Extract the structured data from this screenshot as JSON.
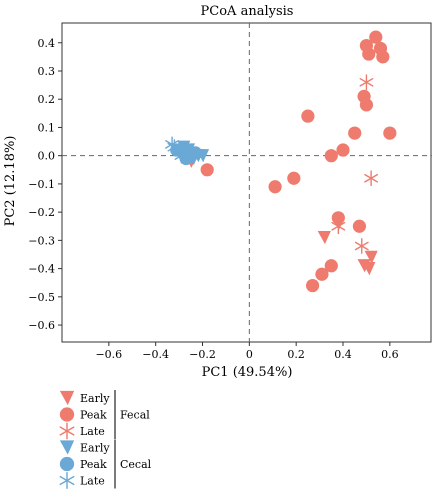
{
  "chart_data": {
    "type": "scatter",
    "title": "PCoA analysis",
    "xlabel": "PC1 (49.54%)",
    "ylabel": "PC2 (12.18%)",
    "xlim": [
      -0.8,
      0.78
    ],
    "ylim": [
      -0.66,
      0.47
    ],
    "xticks": [
      -0.6,
      -0.4,
      -0.2,
      0,
      0.2,
      0.4,
      0.6
    ],
    "yticks": [
      0.4,
      0.3,
      0.2,
      0.1,
      0.0,
      -0.1,
      -0.2,
      -0.3,
      -0.4,
      -0.5,
      -0.6
    ],
    "xtick_labels": [
      "−0.6",
      "−0.4",
      "−0.2",
      "0",
      "0.2",
      "0.4",
      "0.6"
    ],
    "ytick_labels": [
      "0.4",
      "0.3",
      "0.2",
      "0.1",
      "0.0",
      "−0.1",
      "−0.2",
      "−0.3",
      "−0.4",
      "−0.5",
      "−0.6"
    ],
    "grid": false,
    "reference_lines": {
      "x": 0,
      "y": 0,
      "style": "dashed"
    },
    "legend_position": "bottom-left",
    "legend_groups": [
      {
        "label": "Fecal",
        "entries": [
          "Early",
          "Peak",
          "Late"
        ]
      },
      {
        "label": "Cecal",
        "entries": [
          "Early",
          "Peak",
          "Late"
        ]
      }
    ],
    "colors": {
      "Fecal": "#ee7b6e",
      "Cecal": "#6aa8d6"
    },
    "series": [
      {
        "name": "Early",
        "group": "Fecal",
        "marker": "triangle",
        "points": [
          [
            -0.25,
            -0.02
          ],
          [
            0.32,
            -0.29
          ],
          [
            0.38,
            -0.24
          ],
          [
            0.49,
            -0.39
          ],
          [
            0.51,
            -0.4
          ],
          [
            0.52,
            -0.36
          ]
        ]
      },
      {
        "name": "Peak",
        "group": "Fecal",
        "marker": "circle",
        "points": [
          [
            0.54,
            0.42
          ],
          [
            0.5,
            0.39
          ],
          [
            0.56,
            0.38
          ],
          [
            0.51,
            0.36
          ],
          [
            0.57,
            0.35
          ],
          [
            0.49,
            0.21
          ],
          [
            0.5,
            0.18
          ],
          [
            0.45,
            0.08
          ],
          [
            0.6,
            0.08
          ],
          [
            0.25,
            0.14
          ],
          [
            0.35,
            0.0
          ],
          [
            0.4,
            0.02
          ],
          [
            0.19,
            -0.08
          ],
          [
            0.11,
            -0.11
          ],
          [
            0.38,
            -0.22
          ],
          [
            0.47,
            -0.25
          ],
          [
            0.35,
            -0.39
          ],
          [
            0.31,
            -0.42
          ],
          [
            0.27,
            -0.46
          ],
          [
            -0.18,
            -0.05
          ],
          [
            -0.27,
            0.0
          ]
        ]
      },
      {
        "name": "Late",
        "group": "Fecal",
        "marker": "asterisk",
        "points": [
          [
            0.5,
            0.26
          ],
          [
            0.52,
            -0.08
          ],
          [
            0.38,
            -0.25
          ],
          [
            0.48,
            -0.32
          ],
          [
            -0.26,
            0.0
          ]
        ]
      },
      {
        "name": "Early",
        "group": "Cecal",
        "marker": "triangle",
        "points": [
          [
            -0.3,
            0.01
          ],
          [
            -0.28,
            0.03
          ],
          [
            -0.26,
            0.02
          ],
          [
            -0.24,
            -0.01
          ],
          [
            -0.22,
            0.0
          ],
          [
            -0.2,
            0.0
          ]
        ]
      },
      {
        "name": "Peak",
        "group": "Cecal",
        "marker": "circle",
        "points": [
          [
            -0.31,
            0.02
          ],
          [
            -0.28,
            0.01
          ],
          [
            -0.25,
            0.0
          ],
          [
            -0.23,
            0.01
          ],
          [
            -0.27,
            -0.01
          ]
        ]
      },
      {
        "name": "Late",
        "group": "Cecal",
        "marker": "asterisk",
        "points": [
          [
            -0.32,
            0.03
          ],
          [
            -0.3,
            0.02
          ],
          [
            -0.29,
            0.0
          ],
          [
            -0.28,
            0.02
          ],
          [
            -0.26,
            0.01
          ],
          [
            -0.33,
            0.04
          ]
        ]
      }
    ]
  }
}
